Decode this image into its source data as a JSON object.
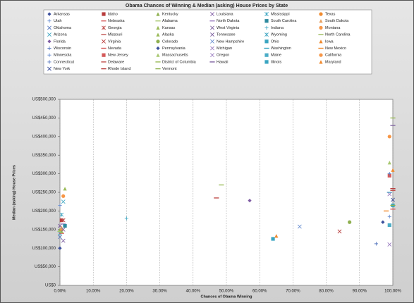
{
  "chart_data": {
    "type": "scatter",
    "title": "Obama Chances of Winning & Median (asking) House Prices by State",
    "x_label": "Chances of Obama Winning",
    "y_label": "Median (asking) House Prices",
    "xlim": [
      0,
      100
    ],
    "xticks": [
      {
        "value": 0,
        "label": "0.00%"
      },
      {
        "value": 10,
        "label": "10.00%"
      },
      {
        "value": 20,
        "label": "20.00%"
      },
      {
        "value": 30,
        "label": "30.00%"
      },
      {
        "value": 40,
        "label": "40.00%"
      },
      {
        "value": 50,
        "label": "50.00%"
      },
      {
        "value": 60,
        "label": "60.00%"
      },
      {
        "value": 70,
        "label": "70.00%"
      },
      {
        "value": 80,
        "label": "80.00%"
      },
      {
        "value": 90,
        "label": "90.00%"
      },
      {
        "value": 100,
        "label": "100.00%"
      }
    ],
    "ylim": [
      0,
      500000
    ],
    "yticks": [
      {
        "value": 0,
        "label": "US$0"
      },
      {
        "value": 50000,
        "label": "US$50,000"
      },
      {
        "value": 100000,
        "label": "US$100,000"
      },
      {
        "value": 150000,
        "label": "US$150,000"
      },
      {
        "value": 200000,
        "label": "US$200,000"
      },
      {
        "value": 250000,
        "label": "US$250,000"
      },
      {
        "value": 300000,
        "label": "US$300,000"
      },
      {
        "value": 350000,
        "label": "US$350,000"
      },
      {
        "value": 400000,
        "label": "US$400,000"
      },
      {
        "value": 450000,
        "label": "US$450,000"
      },
      {
        "value": 500000,
        "label": "US$500,000"
      }
    ],
    "grid": true,
    "series": [
      {
        "name": "Arkansas",
        "color": "#3b4f9c",
        "marker": "diamond",
        "x": [
          0
        ],
        "values": [
          100000
        ]
      },
      {
        "name": "Idaho",
        "color": "#b83c3c",
        "marker": "square",
        "x": [
          0.5
        ],
        "values": [
          175000
        ]
      },
      {
        "name": "Kentucky",
        "color": "#8fb050",
        "marker": "triangle",
        "x": [
          0
        ],
        "values": [
          150000
        ]
      },
      {
        "name": "Louisiana",
        "color": "#7e5ba3",
        "marker": "x",
        "x": [
          0
        ],
        "values": [
          160000
        ]
      },
      {
        "name": "Mississippi",
        "color": "#3aa5c1",
        "marker": "star",
        "x": [
          0
        ],
        "values": [
          140000
        ]
      },
      {
        "name": "Texas",
        "color": "#f08a2e",
        "marker": "circle",
        "x": [
          0.5
        ],
        "values": [
          150000
        ]
      },
      {
        "name": "Utah",
        "color": "#6a8fd1",
        "marker": "plus",
        "x": [
          0
        ],
        "values": [
          215000
        ]
      },
      {
        "name": "Nebraska",
        "color": "#d45a5a",
        "marker": "dash",
        "x": [
          0.5
        ],
        "values": [
          140000
        ]
      },
      {
        "name": "Alabama",
        "color": "#a8c870",
        "marker": "dash",
        "x": [
          0
        ],
        "values": [
          145000
        ]
      },
      {
        "name": "North Dakota",
        "color": "#9a7cc0",
        "marker": "dash",
        "x": [
          1
        ],
        "values": [
          165000
        ]
      },
      {
        "name": "South Carolina",
        "color": "#2e8a9e",
        "marker": "square",
        "x": [
          1.5
        ],
        "values": [
          160000
        ]
      },
      {
        "name": "South Dakota",
        "color": "#e7a060",
        "marker": "triangle",
        "x": [
          0.5
        ],
        "values": [
          155000
        ]
      },
      {
        "name": "Oklahoma",
        "color": "#5b7bc0",
        "marker": "x",
        "x": [
          0
        ],
        "values": [
          130000
        ]
      },
      {
        "name": "Georgia",
        "color": "#c0504d",
        "marker": "star",
        "x": [
          1
        ],
        "values": [
          175000
        ]
      },
      {
        "name": "Kansas",
        "color": "#9bbb59",
        "marker": "triangle",
        "x": [
          0.5
        ],
        "values": [
          145000
        ]
      },
      {
        "name": "West Virginia",
        "color": "#8064a2",
        "marker": "x",
        "x": [
          1
        ],
        "values": [
          120000
        ]
      },
      {
        "name": "Indiana",
        "color": "#4bacc6",
        "marker": "plus",
        "x": [
          20
        ],
        "values": [
          180000
        ]
      },
      {
        "name": "Montana",
        "color": "#f79646",
        "marker": "circle",
        "x": [
          1
        ],
        "values": [
          240000
        ]
      },
      {
        "name": "Arizona",
        "color": "#4bacc6",
        "marker": "x",
        "x": [
          1
        ],
        "values": [
          225000
        ]
      },
      {
        "name": "Missouri",
        "color": "#c0504d",
        "marker": "dash",
        "x": [
          47
        ],
        "values": [
          235000
        ]
      },
      {
        "name": "Alaska",
        "color": "#9bbb59",
        "marker": "triangle",
        "x": [
          1.5
        ],
        "values": [
          260000
        ]
      },
      {
        "name": "Tennessee",
        "color": "#8064a2",
        "marker": "x",
        "x": [
          1
        ],
        "values": [
          150000
        ]
      },
      {
        "name": "Wyoming",
        "color": "#4bacc6",
        "marker": "star",
        "x": [
          0.5
        ],
        "values": [
          190000
        ]
      },
      {
        "name": "North Carolina",
        "color": "#9bbb59",
        "marker": "dash",
        "x": [
          48.5
        ],
        "values": [
          270000
        ]
      },
      {
        "name": "Florida",
        "color": "#7e5ba3",
        "marker": "diamond",
        "x": [
          57
        ],
        "values": [
          228000
        ]
      },
      {
        "name": "Virginia",
        "color": "#b83c3c",
        "marker": "x",
        "x": [
          84
        ],
        "values": [
          145000
        ]
      },
      {
        "name": "Colorado",
        "color": "#8fb050",
        "marker": "circle",
        "x": [
          87
        ],
        "values": [
          170000
        ]
      },
      {
        "name": "New Hampshire",
        "color": "#6a8fd1",
        "marker": "x",
        "x": [
          72
        ],
        "values": [
          158000
        ]
      },
      {
        "name": "Ohio",
        "color": "#3aa5c1",
        "marker": "square",
        "x": [
          64
        ],
        "values": [
          125000
        ]
      },
      {
        "name": "Iowa",
        "color": "#f08a2e",
        "marker": "triangle",
        "x": [
          65
        ],
        "values": [
          133000
        ]
      },
      {
        "name": "Wisconsin",
        "color": "#5b7bc0",
        "marker": "plus",
        "x": [
          95
        ],
        "values": [
          112000
        ]
      },
      {
        "name": "Nevada",
        "color": "#d45a5a",
        "marker": "dash",
        "x": [
          100
        ],
        "values": [
          205000
        ]
      },
      {
        "name": "Pennsylvania",
        "color": "#3b4f9c",
        "marker": "diamond",
        "x": [
          97
        ],
        "values": [
          170000
        ]
      },
      {
        "name": "Michigan",
        "color": "#9a7cc0",
        "marker": "x",
        "x": [
          99
        ],
        "values": [
          110000
        ]
      },
      {
        "name": "Washington",
        "color": "#3aa5c1",
        "marker": "dash",
        "x": [
          99
        ],
        "values": [
          250000
        ]
      },
      {
        "name": "New Mexico",
        "color": "#f08a2e",
        "marker": "dash",
        "x": [
          98
        ],
        "values": [
          200000
        ]
      },
      {
        "name": "Minnesota",
        "color": "#6a8fd1",
        "marker": "plus",
        "x": [
          99
        ],
        "values": [
          185000
        ]
      },
      {
        "name": "New Jersey",
        "color": "#d45a5a",
        "marker": "square",
        "x": [
          99
        ],
        "values": [
          295000
        ]
      },
      {
        "name": "Massachusetts",
        "color": "#a8c870",
        "marker": "triangle",
        "x": [
          99
        ],
        "values": [
          330000
        ]
      },
      {
        "name": "Oregon",
        "color": "#9a7cc0",
        "marker": "x",
        "x": [
          99
        ],
        "values": [
          245000
        ]
      },
      {
        "name": "Maine",
        "color": "#4bacc6",
        "marker": "square",
        "x": [
          99
        ],
        "values": [
          162000
        ]
      },
      {
        "name": "California",
        "color": "#f79646",
        "marker": "circle",
        "x": [
          99
        ],
        "values": [
          400000
        ]
      },
      {
        "name": "Connecticut",
        "color": "#5b7bc0",
        "marker": "plus",
        "x": [
          99
        ],
        "values": [
          300000
        ]
      },
      {
        "name": "Delaware",
        "color": "#c0504d",
        "marker": "dash",
        "x": [
          100
        ],
        "values": [
          255000
        ]
      },
      {
        "name": "District of Columbia",
        "color": "#9bbb59",
        "marker": "dash",
        "x": [
          100
        ],
        "values": [
          450000
        ]
      },
      {
        "name": "Hawaii",
        "color": "#8064a2",
        "marker": "dash",
        "x": [
          100
        ],
        "values": [
          430000
        ]
      },
      {
        "name": "Illinois",
        "color": "#3aa5c1",
        "marker": "square",
        "x": [
          100
        ],
        "values": [
          215000
        ]
      },
      {
        "name": "Maryland",
        "color": "#f08a2e",
        "marker": "triangle",
        "x": [
          100
        ],
        "values": [
          310000
        ]
      },
      {
        "name": "New York",
        "color": "#3b4f9c",
        "marker": "x",
        "x": [
          100
        ],
        "values": [
          230000
        ]
      },
      {
        "name": "Rhode Island",
        "color": "#b83c3c",
        "marker": "dash",
        "x": [
          100
        ],
        "values": [
          260000
        ]
      },
      {
        "name": "Vermont",
        "color": "#8fb050",
        "marker": "dash",
        "x": [
          100
        ],
        "values": [
          215000
        ]
      }
    ]
  }
}
